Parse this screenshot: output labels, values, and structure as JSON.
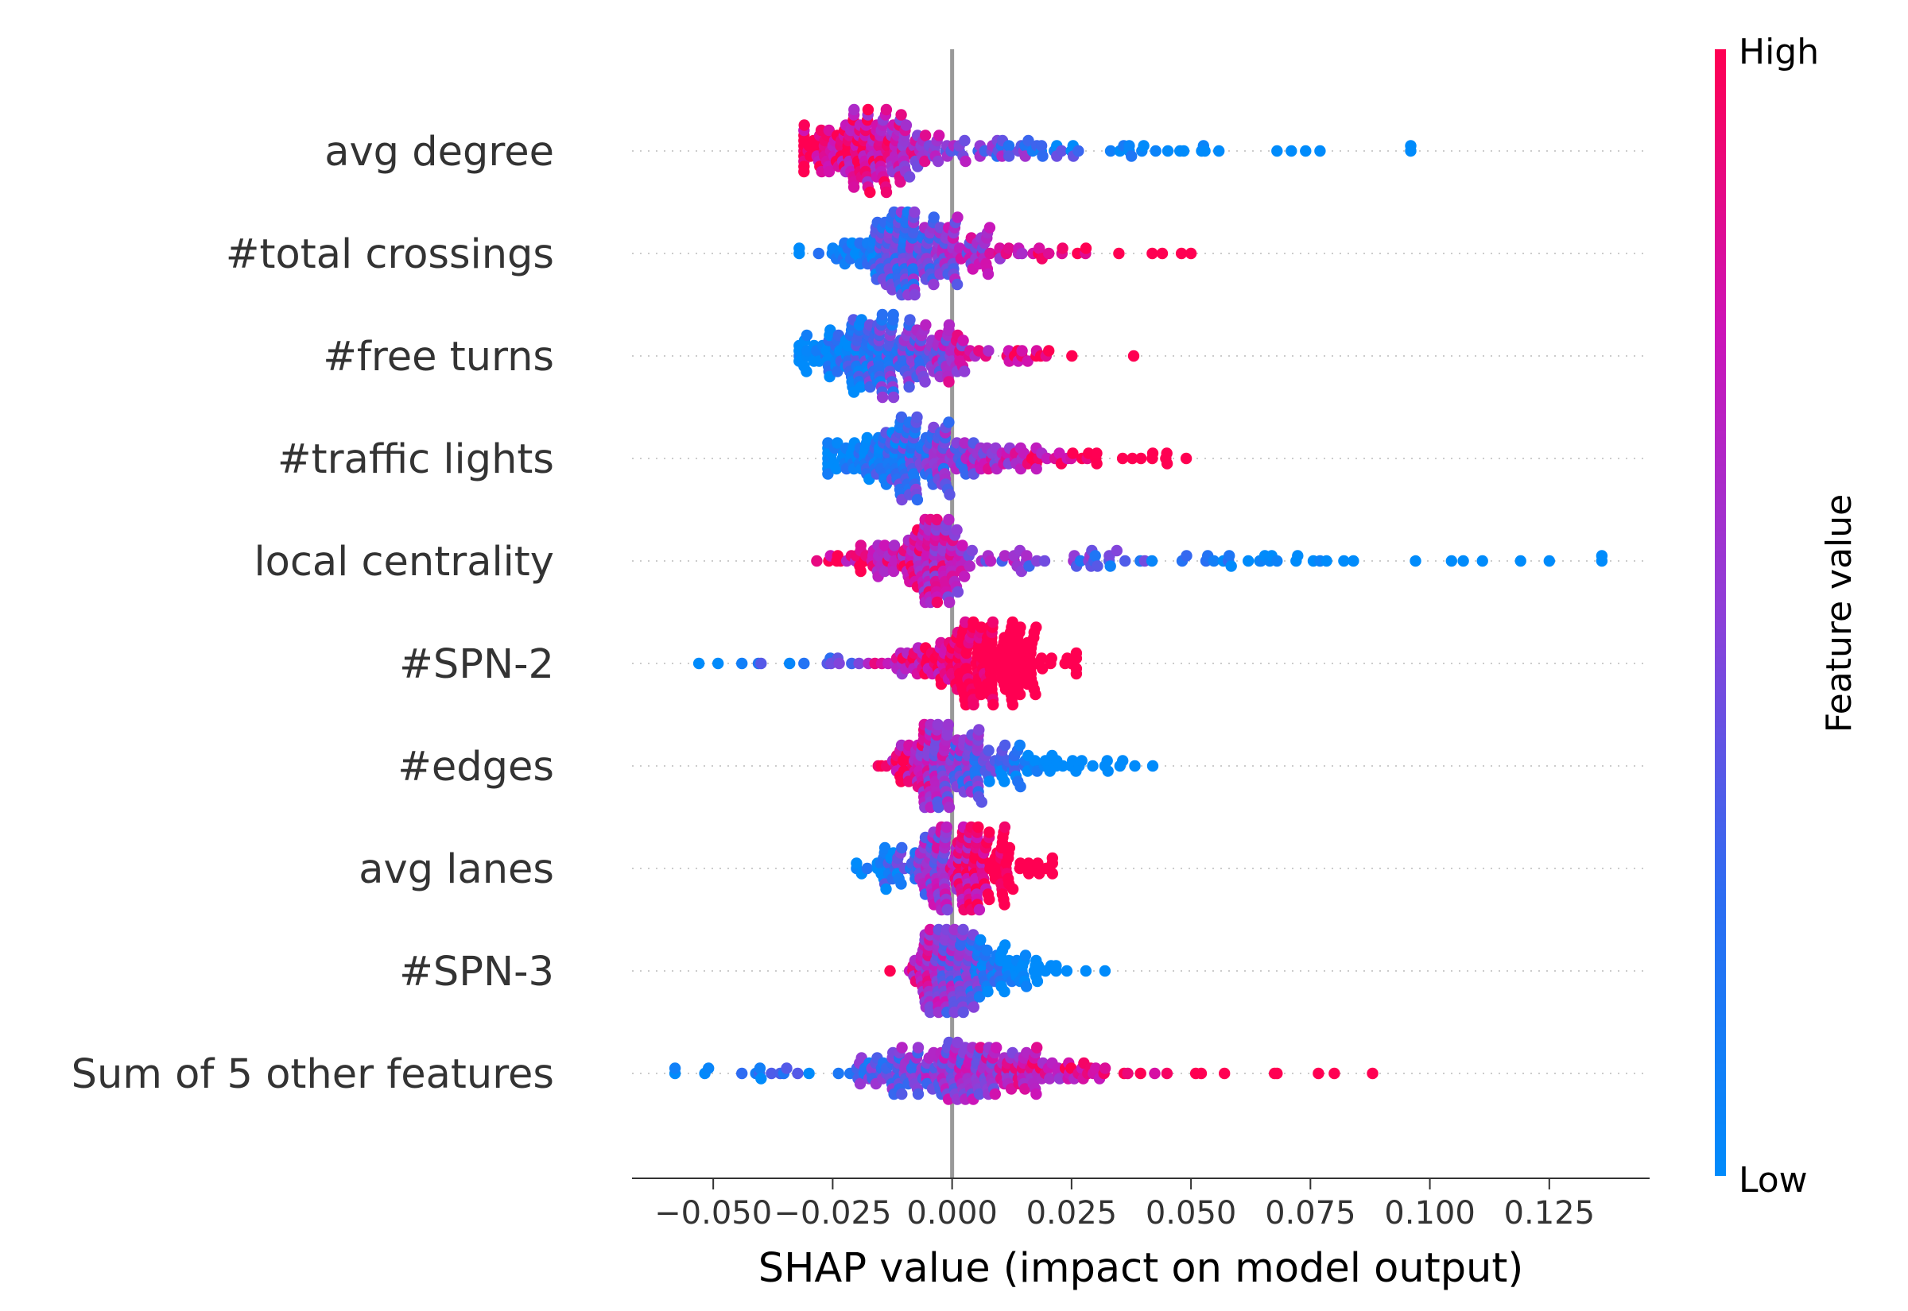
{
  "chart_data": {
    "type": "beeswarm",
    "xlabel": "SHAP value (impact on model output)",
    "xlim": [
      -0.067,
      0.146
    ],
    "xticks": [
      -0.05,
      -0.025,
      0.0,
      0.025,
      0.05,
      0.075,
      0.1,
      0.125
    ],
    "xtick_labels": [
      "−0.050",
      "−0.025",
      "0.000",
      "0.025",
      "0.050",
      "0.075",
      "0.100",
      "0.125"
    ],
    "colorbar": {
      "title": "Feature value",
      "high_label": "High",
      "low_label": "Low",
      "low_color": "#008bfb",
      "high_color": "#ff0052"
    },
    "features": [
      {
        "name": "avg degree",
        "min": -0.031,
        "max": 0.096,
        "peak": -0.017,
        "width": 0.008,
        "tail": 0.35,
        "corr": -1,
        "outliers": [
          0.068,
          0.071,
          0.074,
          0.077,
          0.096
        ]
      },
      {
        "name": "#total crossings",
        "min": -0.032,
        "max": 0.05,
        "peak": -0.008,
        "width": 0.007,
        "tail": 0.35,
        "corr": 1,
        "outliers": [
          0.044,
          0.048,
          0.05
        ]
      },
      {
        "name": "#free turns",
        "min": -0.032,
        "max": 0.038,
        "peak": -0.014,
        "width": 0.009,
        "tail": 0.45,
        "corr": 1,
        "outliers": [
          0.038
        ]
      },
      {
        "name": "#traffic lights",
        "min": -0.026,
        "max": 0.049,
        "peak": -0.012,
        "width": 0.008,
        "tail": 0.45,
        "corr": 1,
        "outliers": [
          0.042,
          0.045,
          0.049
        ]
      },
      {
        "name": "local centrality",
        "min": -0.031,
        "max": 0.136,
        "peak": -0.003,
        "width": 0.003,
        "tail": 0.55,
        "corr": -1,
        "outliers": [
          0.058,
          0.062,
          0.068,
          0.072,
          0.077,
          0.082,
          0.084,
          0.097,
          0.107,
          0.111,
          0.119,
          0.125,
          0.136
        ]
      },
      {
        "name": "#SPN-2",
        "min": -0.053,
        "max": 0.026,
        "peak": 0.006,
        "width": 0.008,
        "tail": 0.3,
        "corr": 1,
        "outliers": [
          -0.053,
          -0.049,
          -0.044,
          -0.04,
          0.026
        ]
      },
      {
        "name": "#edges",
        "min": -0.016,
        "max": 0.042,
        "peak": -0.006,
        "width": 0.004,
        "tail": 0.5,
        "corr": -1,
        "outliers": [
          0.032,
          0.042
        ]
      },
      {
        "name": "avg lanes",
        "min": -0.02,
        "max": 0.021,
        "peak": 0.002,
        "width": 0.008,
        "tail": 0.25,
        "corr": 1,
        "outliers": [
          0.021
        ]
      },
      {
        "name": "#SPN-3",
        "min": -0.013,
        "max": 0.032,
        "peak": -0.003,
        "width": 0.003,
        "tail": 0.5,
        "corr": -1,
        "outliers": [
          -0.013,
          0.028,
          0.032
        ]
      },
      {
        "name": "Sum of 5 other features",
        "min": -0.058,
        "max": 0.088,
        "peak": 0.003,
        "width": 0.013,
        "tail": 0.25,
        "corr": 1,
        "outliers": [
          -0.058,
          -0.051,
          -0.044,
          -0.04,
          0.051,
          0.068,
          0.08,
          0.088
        ]
      }
    ]
  }
}
